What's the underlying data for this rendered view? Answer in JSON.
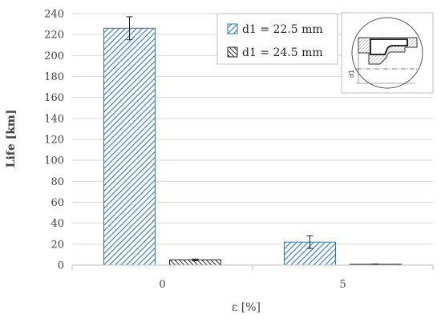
{
  "chart_data": {
    "type": "bar",
    "categories": [
      "0",
      "5"
    ],
    "series": [
      {
        "name": "d1 = 22.5 mm",
        "values": [
          226,
          22
        ],
        "errors": [
          11,
          6
        ],
        "pattern": "hatch-forward",
        "color": "#2e75b6"
      },
      {
        "name": "d1 = 24.5 mm",
        "values": [
          5,
          0.8
        ],
        "errors": [
          0.8,
          0.3
        ],
        "pattern": "hatch-back",
        "color": "#262626"
      }
    ],
    "xlabel": "ε [%]",
    "ylabel": "Life [km]",
    "ylim": [
      0,
      240
    ],
    "ytick_step": 20,
    "grid": true,
    "legend_position": "top-center",
    "inset_label": "d1"
  }
}
